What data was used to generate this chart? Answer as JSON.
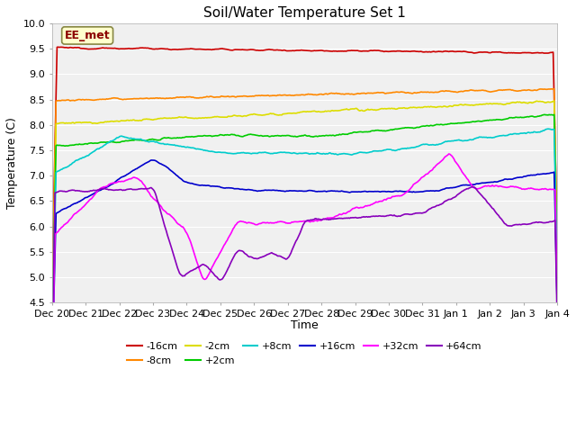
{
  "title": "Soil/Water Temperature Set 1",
  "xlabel": "Time",
  "ylabel": "Temperature (C)",
  "ylim": [
    4.5,
    10.0
  ],
  "colors": {
    "-16cm": "#cc0000",
    "-8cm": "#ff8800",
    "-2cm": "#dddd00",
    "+2cm": "#00cc00",
    "+8cm": "#00cccc",
    "+16cm": "#0000cc",
    "+32cm": "#ff00ff",
    "+64cm": "#8800bb"
  },
  "x_tick_labels": [
    "Dec 20",
    "Dec 21",
    "Dec 22",
    "Dec 23",
    "Dec 24",
    "Dec 25",
    "Dec 26",
    "Dec 27",
    "Dec 28",
    "Dec 29",
    "Dec 30",
    "Dec 31",
    "Jan 1",
    "Jan 2",
    "Jan 3",
    "Jan 4"
  ],
  "watermark_text": "EE_met",
  "watermark_color": "#8B0000",
  "watermark_bg": "#ffffcc",
  "watermark_edge": "#888844",
  "fig_bg": "#ffffff",
  "plot_bg": "#f0f0f0",
  "grid_color": "#ffffff",
  "title_fontsize": 11,
  "axis_fontsize": 9,
  "tick_fontsize": 8,
  "legend_fontsize": 8
}
